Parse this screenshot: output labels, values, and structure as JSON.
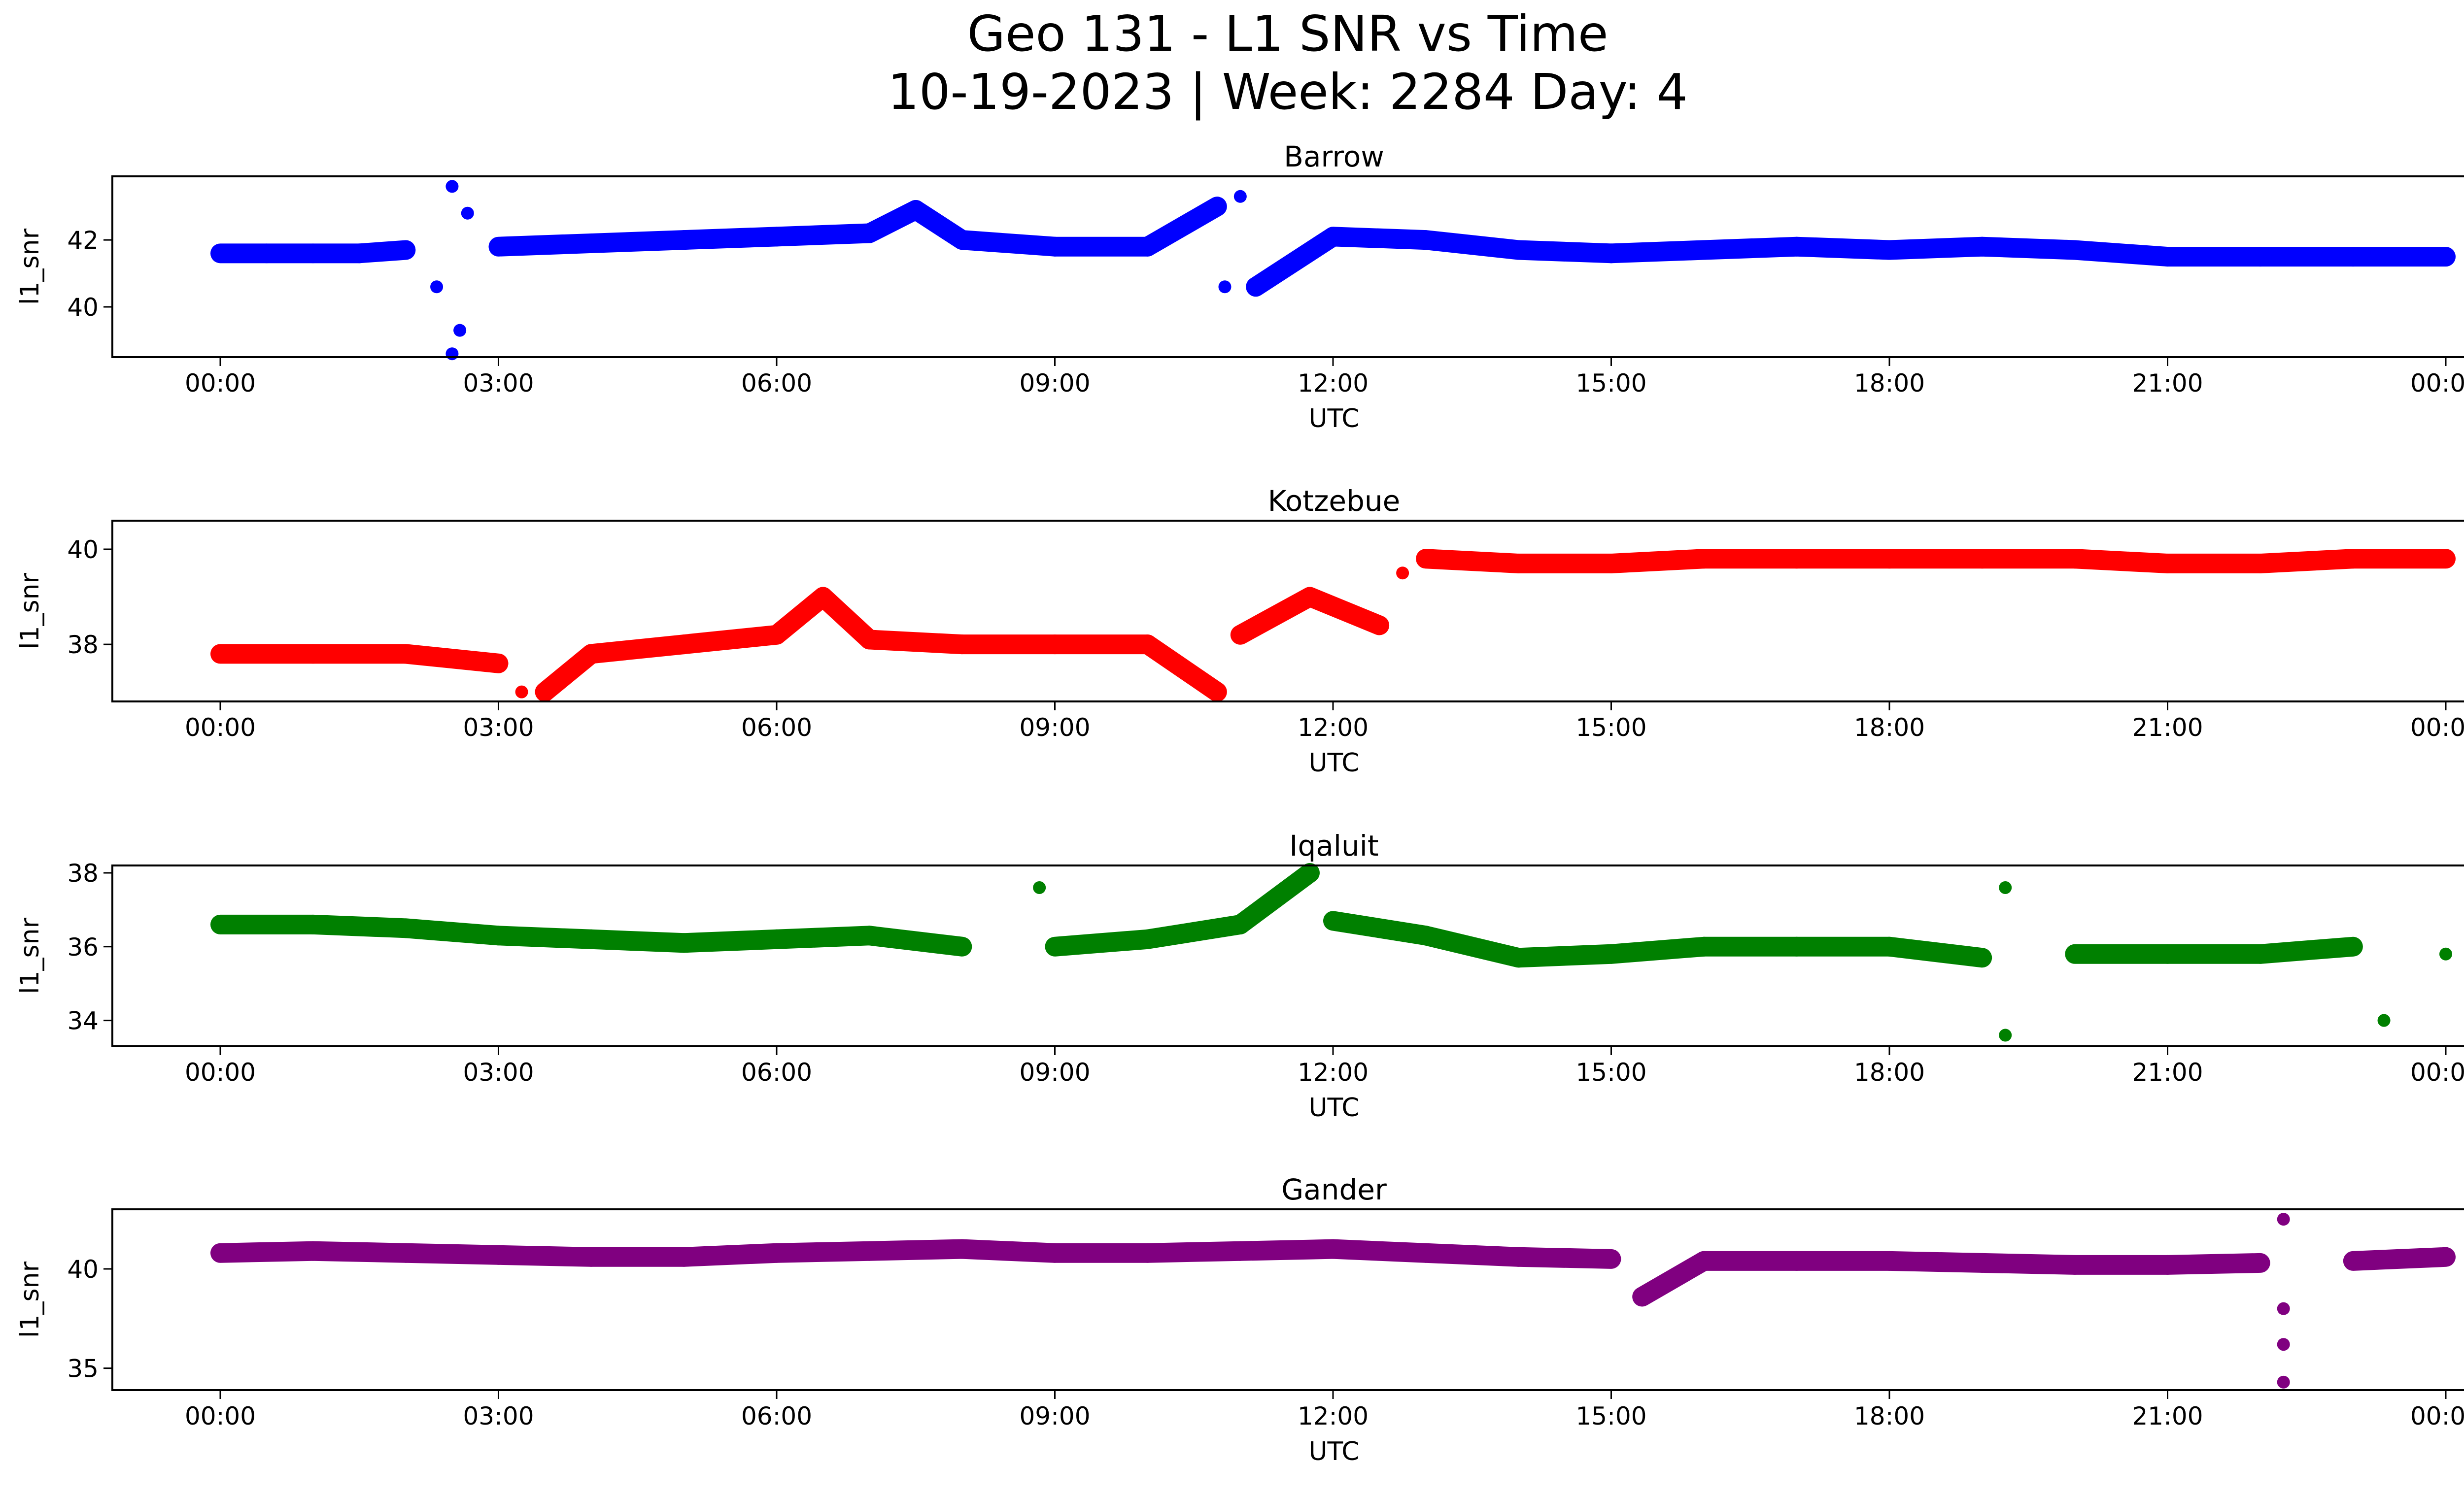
{
  "figure": {
    "title_line1": "Geo 131 - L1 SNR vs Time",
    "title_line2": "10-19-2023 | Week: 2284 Day: 4"
  },
  "chart_data": [
    {
      "type": "scatter",
      "title": "Barrow",
      "xlabel": "UTC",
      "ylabel": "l1_snr",
      "color": "#0000ff",
      "x_ticks": [
        "00:00",
        "03:00",
        "06:00",
        "09:00",
        "12:00",
        "15:00",
        "18:00",
        "21:00",
        "00:00"
      ],
      "xlim": [
        "2023-10-18T23:45",
        "2023-10-20T00:45"
      ],
      "y_ticks": [
        40,
        42
      ],
      "ylim": [
        38.5,
        43.9
      ],
      "series": [
        {
          "points": [
            {
              "x": "00:00",
              "y": 41.6
            },
            {
              "x": "00:30",
              "y": 41.6
            },
            {
              "x": "01:00",
              "y": 41.6
            },
            {
              "x": "01:30",
              "y": 41.6
            },
            {
              "x": "02:00",
              "y": 41.7
            },
            {
              "x": "02:20",
              "y": 40.6
            },
            {
              "x": "02:30",
              "y": 43.6
            },
            {
              "x": "02:30",
              "y": 38.6
            },
            {
              "x": "02:35",
              "y": 39.3
            },
            {
              "x": "02:40",
              "y": 42.8
            },
            {
              "x": "03:00",
              "y": 41.8
            },
            {
              "x": "04:00",
              "y": 41.9
            },
            {
              "x": "05:00",
              "y": 42.0
            },
            {
              "x": "06:00",
              "y": 42.1
            },
            {
              "x": "07:00",
              "y": 42.2
            },
            {
              "x": "07:30",
              "y": 42.9
            },
            {
              "x": "08:00",
              "y": 42.0
            },
            {
              "x": "09:00",
              "y": 41.8
            },
            {
              "x": "10:00",
              "y": 41.8
            },
            {
              "x": "10:45",
              "y": 43.0
            },
            {
              "x": "11:00",
              "y": 43.3
            },
            {
              "x": "10:50",
              "y": 40.6
            },
            {
              "x": "11:10",
              "y": 40.6
            },
            {
              "x": "12:00",
              "y": 42.1
            },
            {
              "x": "13:00",
              "y": 42.0
            },
            {
              "x": "14:00",
              "y": 41.7
            },
            {
              "x": "15:00",
              "y": 41.6
            },
            {
              "x": "16:00",
              "y": 41.7
            },
            {
              "x": "17:00",
              "y": 41.8
            },
            {
              "x": "18:00",
              "y": 41.7
            },
            {
              "x": "19:00",
              "y": 41.8
            },
            {
              "x": "20:00",
              "y": 41.7
            },
            {
              "x": "21:00",
              "y": 41.5
            },
            {
              "x": "22:00",
              "y": 41.5
            },
            {
              "x": "23:00",
              "y": 41.5
            },
            {
              "x": "24:00",
              "y": 41.5
            }
          ]
        }
      ]
    },
    {
      "type": "scatter",
      "title": "Kotzebue",
      "xlabel": "UTC",
      "ylabel": "l1_snr",
      "color": "#ff0000",
      "x_ticks": [
        "00:00",
        "03:00",
        "06:00",
        "09:00",
        "12:00",
        "15:00",
        "18:00",
        "21:00",
        "00:00"
      ],
      "xlim": [
        "2023-10-18T23:45",
        "2023-10-20T00:45"
      ],
      "y_ticks": [
        38,
        40
      ],
      "ylim": [
        36.8,
        40.6
      ],
      "series": [
        {
          "points": [
            {
              "x": "00:00",
              "y": 37.8
            },
            {
              "x": "01:00",
              "y": 37.8
            },
            {
              "x": "02:00",
              "y": 37.8
            },
            {
              "x": "03:00",
              "y": 37.6
            },
            {
              "x": "03:15",
              "y": 37.0
            },
            {
              "x": "03:30",
              "y": 37.0
            },
            {
              "x": "04:00",
              "y": 37.8
            },
            {
              "x": "05:00",
              "y": 38.0
            },
            {
              "x": "06:00",
              "y": 38.2
            },
            {
              "x": "06:30",
              "y": 39.0
            },
            {
              "x": "07:00",
              "y": 38.1
            },
            {
              "x": "08:00",
              "y": 38.0
            },
            {
              "x": "09:00",
              "y": 38.0
            },
            {
              "x": "10:00",
              "y": 38.0
            },
            {
              "x": "10:45",
              "y": 37.0
            },
            {
              "x": "11:00",
              "y": 38.2
            },
            {
              "x": "11:45",
              "y": 39.0
            },
            {
              "x": "12:30",
              "y": 38.4
            },
            {
              "x": "12:45",
              "y": 39.5
            },
            {
              "x": "13:00",
              "y": 39.8
            },
            {
              "x": "14:00",
              "y": 39.7
            },
            {
              "x": "15:00",
              "y": 39.7
            },
            {
              "x": "16:00",
              "y": 39.8
            },
            {
              "x": "17:00",
              "y": 39.8
            },
            {
              "x": "18:00",
              "y": 39.8
            },
            {
              "x": "19:00",
              "y": 39.8
            },
            {
              "x": "20:00",
              "y": 39.8
            },
            {
              "x": "21:00",
              "y": 39.7
            },
            {
              "x": "22:00",
              "y": 39.7
            },
            {
              "x": "23:00",
              "y": 39.8
            },
            {
              "x": "24:00",
              "y": 39.8
            }
          ]
        }
      ]
    },
    {
      "type": "scatter",
      "title": "Iqaluit",
      "xlabel": "UTC",
      "ylabel": "l1_snr",
      "color": "#008000",
      "x_ticks": [
        "00:00",
        "03:00",
        "06:00",
        "09:00",
        "12:00",
        "15:00",
        "18:00",
        "21:00",
        "00:00"
      ],
      "xlim": [
        "2023-10-18T23:45",
        "2023-10-20T00:45"
      ],
      "y_ticks": [
        34,
        36,
        38
      ],
      "ylim": [
        33.3,
        38.2
      ],
      "series": [
        {
          "points": [
            {
              "x": "00:00",
              "y": 36.6
            },
            {
              "x": "01:00",
              "y": 36.6
            },
            {
              "x": "02:00",
              "y": 36.5
            },
            {
              "x": "03:00",
              "y": 36.3
            },
            {
              "x": "04:00",
              "y": 36.2
            },
            {
              "x": "05:00",
              "y": 36.1
            },
            {
              "x": "06:00",
              "y": 36.2
            },
            {
              "x": "07:00",
              "y": 36.3
            },
            {
              "x": "08:00",
              "y": 36.0
            },
            {
              "x": "08:50",
              "y": 37.6
            },
            {
              "x": "09:00",
              "y": 36.0
            },
            {
              "x": "10:00",
              "y": 36.2
            },
            {
              "x": "11:00",
              "y": 36.6
            },
            {
              "x": "11:45",
              "y": 38.0
            },
            {
              "x": "12:00",
              "y": 36.7
            },
            {
              "x": "13:00",
              "y": 36.3
            },
            {
              "x": "14:00",
              "y": 35.7
            },
            {
              "x": "15:00",
              "y": 35.8
            },
            {
              "x": "16:00",
              "y": 36.0
            },
            {
              "x": "17:00",
              "y": 36.0
            },
            {
              "x": "18:00",
              "y": 36.0
            },
            {
              "x": "19:00",
              "y": 35.7
            },
            {
              "x": "19:15",
              "y": 37.6
            },
            {
              "x": "19:15",
              "y": 33.6
            },
            {
              "x": "20:00",
              "y": 35.8
            },
            {
              "x": "21:00",
              "y": 35.8
            },
            {
              "x": "22:00",
              "y": 35.8
            },
            {
              "x": "23:00",
              "y": 36.0
            },
            {
              "x": "23:20",
              "y": 34.0
            },
            {
              "x": "24:00",
              "y": 35.8
            }
          ]
        }
      ]
    },
    {
      "type": "scatter",
      "title": "Gander",
      "xlabel": "UTC",
      "ylabel": "l1_snr",
      "color": "#800080",
      "x_ticks": [
        "00:00",
        "03:00",
        "06:00",
        "09:00",
        "12:00",
        "15:00",
        "18:00",
        "21:00",
        "00:00"
      ],
      "xlim": [
        "2023-10-18T23:45",
        "2023-10-20T00:45"
      ],
      "y_ticks": [
        35,
        40
      ],
      "ylim": [
        33.9,
        43.0
      ],
      "series": [
        {
          "points": [
            {
              "x": "00:00",
              "y": 40.8
            },
            {
              "x": "01:00",
              "y": 40.9
            },
            {
              "x": "02:00",
              "y": 40.8
            },
            {
              "x": "03:00",
              "y": 40.7
            },
            {
              "x": "04:00",
              "y": 40.6
            },
            {
              "x": "05:00",
              "y": 40.6
            },
            {
              "x": "06:00",
              "y": 40.8
            },
            {
              "x": "07:00",
              "y": 40.9
            },
            {
              "x": "08:00",
              "y": 41.0
            },
            {
              "x": "09:00",
              "y": 40.8
            },
            {
              "x": "10:00",
              "y": 40.8
            },
            {
              "x": "11:00",
              "y": 40.9
            },
            {
              "x": "12:00",
              "y": 41.0
            },
            {
              "x": "13:00",
              "y": 40.8
            },
            {
              "x": "14:00",
              "y": 40.6
            },
            {
              "x": "15:00",
              "y": 40.5
            },
            {
              "x": "15:20",
              "y": 38.6
            },
            {
              "x": "16:00",
              "y": 40.4
            },
            {
              "x": "17:00",
              "y": 40.4
            },
            {
              "x": "18:00",
              "y": 40.4
            },
            {
              "x": "19:00",
              "y": 40.3
            },
            {
              "x": "20:00",
              "y": 40.2
            },
            {
              "x": "21:00",
              "y": 40.2
            },
            {
              "x": "22:00",
              "y": 40.3
            },
            {
              "x": "22:15",
              "y": 42.5
            },
            {
              "x": "22:15",
              "y": 38.0
            },
            {
              "x": "22:15",
              "y": 36.2
            },
            {
              "x": "22:15",
              "y": 34.3
            },
            {
              "x": "23:00",
              "y": 40.4
            },
            {
              "x": "24:00",
              "y": 40.6
            }
          ]
        }
      ]
    }
  ]
}
